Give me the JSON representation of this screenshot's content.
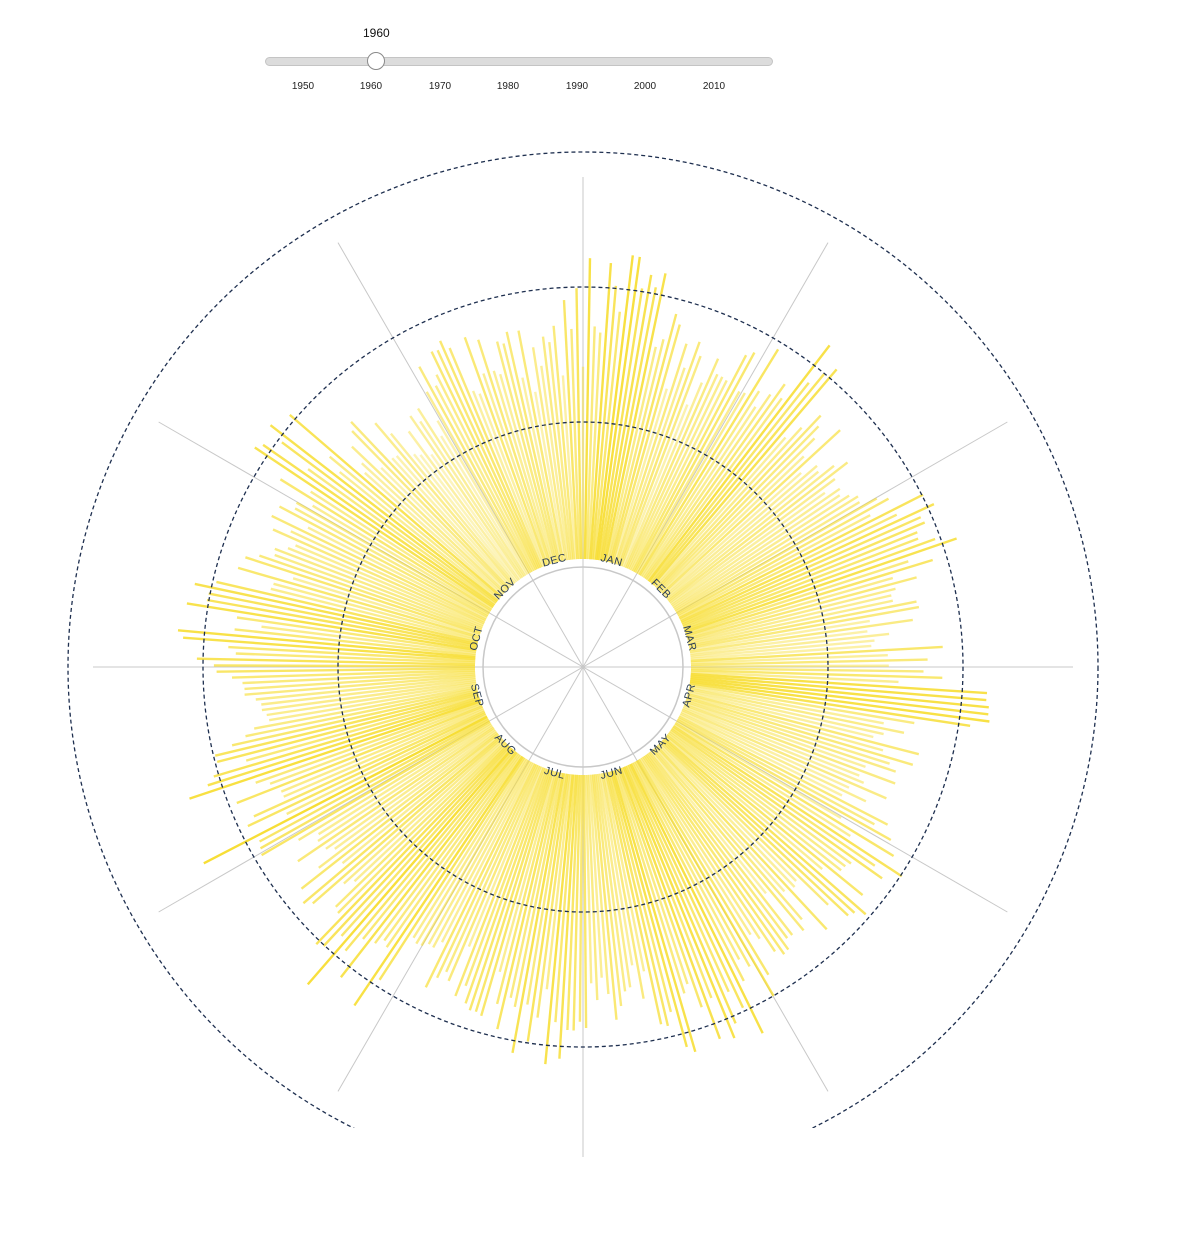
{
  "slider": {
    "current_year_label": "1960",
    "selected_year": 1960,
    "min_year": 1945,
    "max_year": 2018,
    "ticks": [
      "1950",
      "1960",
      "1970",
      "1980",
      "1990",
      "2000",
      "2010"
    ]
  },
  "chart_data": {
    "type": "radial-bar",
    "months": [
      "JAN",
      "FEB",
      "MAR",
      "APR",
      "MAY",
      "JUN",
      "JUL",
      "AUG",
      "SEP",
      "OCT",
      "NOV",
      "DEC"
    ],
    "bar_color": "#f7dd2e",
    "reference_circles": 3,
    "monthly_peak_levels": [
      2.65,
      2.35,
      2.2,
      2.45,
      2.15,
      2.45,
      2.45,
      2.35,
      2.6,
      2.3,
      2.4,
      1.95
    ],
    "month_min_levels": [
      1.05,
      1.0,
      1.25,
      1.05,
      1.2,
      1.15,
      1.2,
      1.3,
      1.2,
      1.25,
      1.1,
      0.95
    ],
    "circle_color": "#1e2f4f",
    "grid_color": "#c8c8c8"
  }
}
